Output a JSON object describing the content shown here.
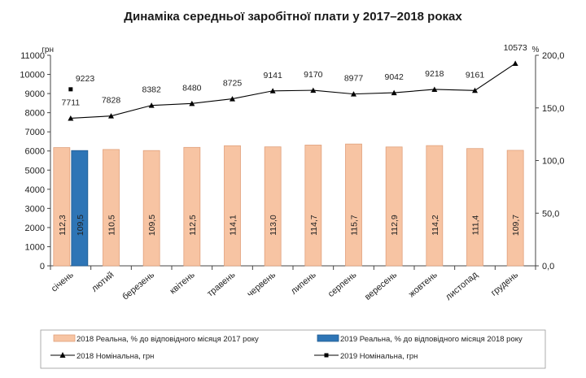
{
  "chart_data": {
    "type": "bar",
    "title": "Динаміка середньої заробітної плати у 2017–2018 роках",
    "left_axis_unit": "грн",
    "right_axis_unit": "%",
    "ylim_left": [
      0,
      11000
    ],
    "left_ticks": [
      "0",
      "1000",
      "2000",
      "3000",
      "4000",
      "5000",
      "6000",
      "7000",
      "8000",
      "9000",
      "10000",
      "11000"
    ],
    "ylim_right": [
      0,
      200
    ],
    "right_ticks": [
      "0,0",
      "50,0",
      "100,0",
      "150,0",
      "200,0"
    ],
    "categories": [
      "січень",
      "лютий",
      "березень",
      "квітень",
      "травень",
      "червень",
      "липень",
      "серпень",
      "вересень",
      "жовтень",
      "листопад",
      "грудень"
    ],
    "series": [
      {
        "name": "2018 Реальна, % до відповідного місяця 2017 року",
        "kind": "bar",
        "axis": "right",
        "color": "#f7c4a3",
        "values": [
          112.3,
          110.5,
          109.5,
          112.5,
          114.1,
          113.0,
          114.7,
          115.7,
          112.9,
          114.2,
          111.4,
          109.7
        ],
        "labels": [
          "112,3",
          "110,5",
          "109,5",
          "112,5",
          "114,1",
          "113,0",
          "114,7",
          "115,7",
          "112,9",
          "114,2",
          "111,4",
          "109,7"
        ]
      },
      {
        "name": "2019 Реальна, % до відповідного місяця 2018 року",
        "kind": "bar",
        "axis": "right",
        "color": "#2e75b6",
        "values": [
          109.5,
          null,
          null,
          null,
          null,
          null,
          null,
          null,
          null,
          null,
          null,
          null
        ],
        "labels": [
          "109,5",
          "",
          "",
          "",
          "",
          "",
          "",
          "",
          "",
          "",
          "",
          ""
        ]
      },
      {
        "name": "2018 Номінальна, грн",
        "kind": "line",
        "axis": "left",
        "marker": "triangle",
        "color": "#000000",
        "values": [
          7711,
          7828,
          8382,
          8480,
          8725,
          9141,
          9170,
          8977,
          9042,
          9218,
          9161,
          10573
        ],
        "labels": [
          "7711",
          "7828",
          "8382",
          "8480",
          "8725",
          "9141",
          "9170",
          "8977",
          "9042",
          "9218",
          "9161",
          "10573"
        ]
      },
      {
        "name": "2019 Номінальна, грн",
        "kind": "point",
        "axis": "left",
        "marker": "square",
        "color": "#000000",
        "values": [
          9223,
          null,
          null,
          null,
          null,
          null,
          null,
          null,
          null,
          null,
          null,
          null
        ],
        "labels": [
          "9223",
          "",
          "",
          "",
          "",
          "",
          "",
          "",
          "",
          "",
          "",
          ""
        ]
      }
    ],
    "legend_position": "bottom"
  }
}
